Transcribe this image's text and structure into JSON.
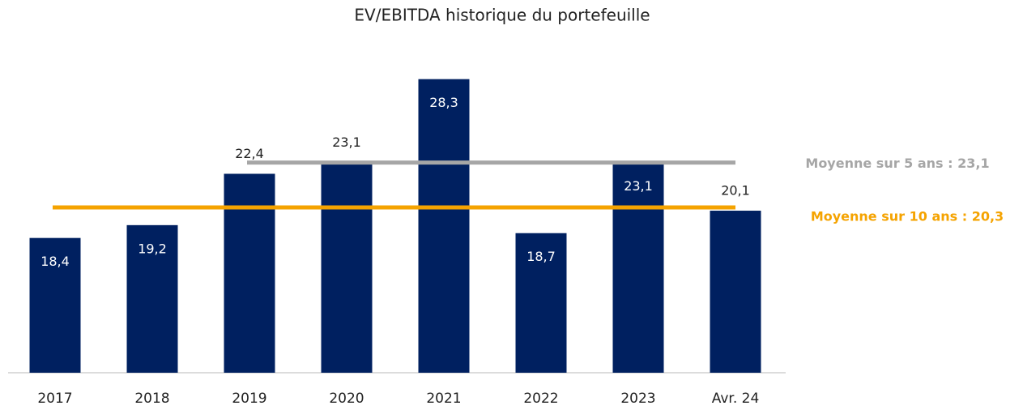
{
  "chart_data": {
    "type": "bar",
    "title": "EV/EBITDA historique du portefeuille",
    "categories": [
      "2017",
      "2018",
      "2019",
      "2020",
      "2021",
      "2022",
      "2023",
      "Avr. 24"
    ],
    "values": [
      18.4,
      19.2,
      22.4,
      23.1,
      28.3,
      18.7,
      23.1,
      20.1
    ],
    "value_labels": [
      "18,4",
      "19,2",
      "22,4",
      "23,1",
      "28,3",
      "18,7",
      "23,1",
      "20,1"
    ],
    "color": "#002060",
    "ylim": [
      10,
      30
    ],
    "reference_lines": [
      {
        "name": "Moyenne sur 5 ans : 23,1",
        "value": 23.1,
        "color": "#a6a6a6"
      },
      {
        "name": "Moyenne sur 10 ans : 20,3",
        "value": 20.3,
        "color": "#f5a300"
      }
    ]
  }
}
